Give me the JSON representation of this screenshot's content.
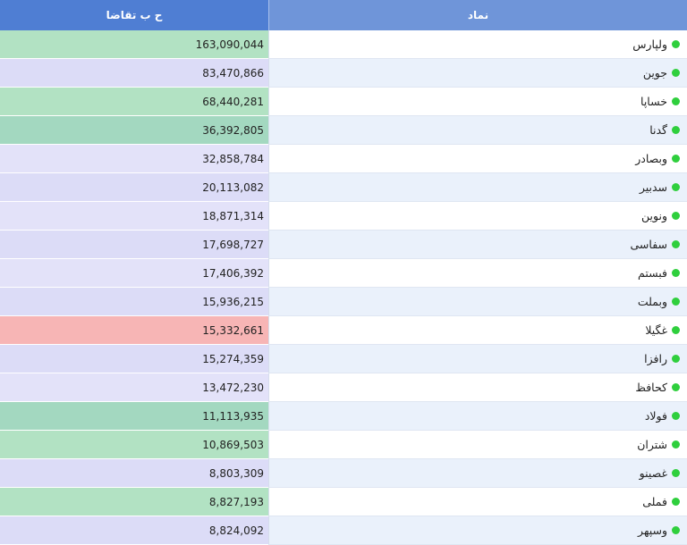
{
  "header": {
    "symbol": "نماد",
    "value": "ح ب تقاضا"
  },
  "rows": [
    {
      "symbol": "ولپارس",
      "value": "163,090,044"
    },
    {
      "symbol": "جوین",
      "value": "83,470,866"
    },
    {
      "symbol": "خساپا",
      "value": "68,440,281"
    },
    {
      "symbol": "گدنا",
      "value": "36,392,805"
    },
    {
      "symbol": "وبصادر",
      "value": "32,858,784"
    },
    {
      "symbol": "سدبیر",
      "value": "20,113,082"
    },
    {
      "symbol": "ونوین",
      "value": "18,871,314"
    },
    {
      "symbol": "سفاسی",
      "value": "17,698,727"
    },
    {
      "symbol": "فبستم",
      "value": "17,406,392"
    },
    {
      "symbol": "وبملت",
      "value": "15,936,215"
    },
    {
      "symbol": "غگیلا",
      "value": "15,332,661"
    },
    {
      "symbol": "رافزا",
      "value": "15,274,359"
    },
    {
      "symbol": "کحافظ",
      "value": "13,472,230"
    },
    {
      "symbol": "فولاد",
      "value": "11,113,935"
    },
    {
      "symbol": "شتران",
      "value": "10,869,503"
    },
    {
      "symbol": "غصینو",
      "value": "8,803,309"
    },
    {
      "symbol": "فملی",
      "value": "8,827,193"
    },
    {
      "symbol": "وسپهر",
      "value": "8,824,092"
    }
  ],
  "colors": {
    "header_symbol": "#6f95d9",
    "header_value": "#4f7ed3",
    "status_dot": "#2fcf3d",
    "value_green": "#b2e2c3",
    "value_dark_green": "#a3d8c0",
    "value_lavender": "#dcdcf7",
    "value_red": "#f7b5b5"
  }
}
